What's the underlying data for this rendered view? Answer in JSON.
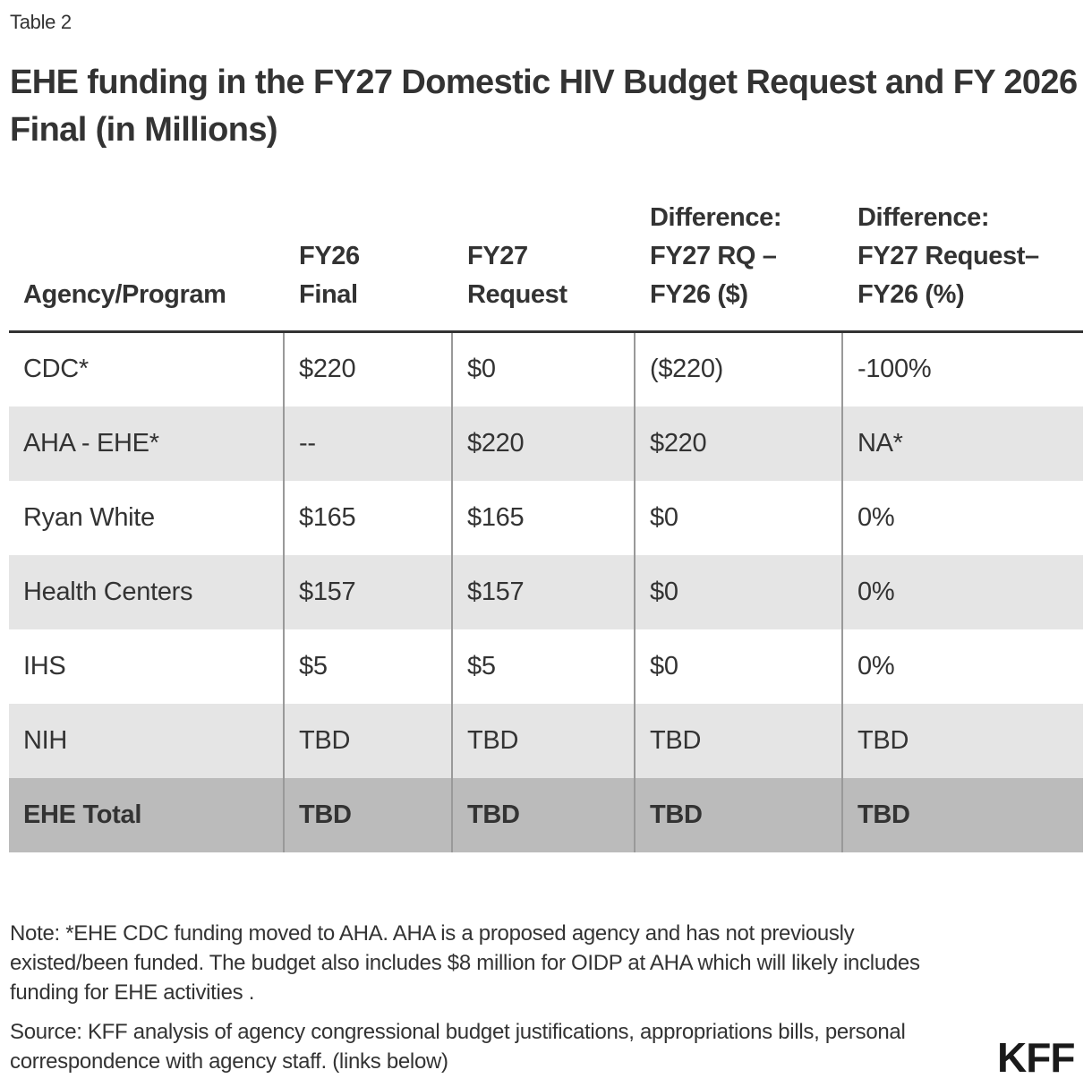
{
  "eyebrow": "Table 2",
  "title": "EHE funding in the FY27 Domestic HIV Budget Request and FY 2026 Final (in Millions)",
  "table": {
    "headers": [
      "Agency/Program",
      "FY26 Final",
      "FY27 Request",
      "Difference: FY27 RQ – FY26 ($)",
      "Difference: FY27 Request– FY26 (%)"
    ],
    "header_lines": [
      [
        "Agency/Program"
      ],
      [
        "FY26",
        "Final"
      ],
      [
        "FY27",
        "Request"
      ],
      [
        "Difference:",
        "FY27 RQ –",
        "FY26 ($)"
      ],
      [
        "Difference:",
        "FY27 Request–",
        "FY26 (%)"
      ]
    ],
    "rows": [
      {
        "cells": [
          "CDC*",
          "$220",
          "$0",
          "($220)",
          "-100%"
        ],
        "shaded": false,
        "total": false
      },
      {
        "cells": [
          "AHA - EHE*",
          "--",
          "$220",
          "$220",
          "NA*"
        ],
        "shaded": true,
        "total": false
      },
      {
        "cells": [
          "Ryan White",
          "$165",
          "$165",
          "$0",
          "0%"
        ],
        "shaded": false,
        "total": false
      },
      {
        "cells": [
          "Health Centers",
          "$157",
          "$157",
          "$0",
          "0%"
        ],
        "shaded": true,
        "total": false
      },
      {
        "cells": [
          "IHS",
          "$5",
          "$5",
          "$0",
          "0%"
        ],
        "shaded": false,
        "total": false
      },
      {
        "cells": [
          "NIH",
          "TBD",
          "TBD",
          "TBD",
          "TBD"
        ],
        "shaded": true,
        "total": false
      },
      {
        "cells": [
          "EHE Total",
          "TBD",
          "TBD",
          "TBD",
          "TBD"
        ],
        "shaded": false,
        "total": true
      }
    ]
  },
  "footer": {
    "note": "Note: *EHE CDC funding moved to AHA. AHA is a proposed agency and has not previously existed/been funded. The budget also includes $8 million for OIDP at AHA which will likely includes funding for EHE activities .",
    "source": "Source: KFF analysis of agency congressional budget justifications, appropriations bills, personal correspondence with agency staff. (links below)"
  },
  "logo": "KFF",
  "colors": {
    "text": "#333333",
    "row_shade": "#e5e5e5",
    "total_row": "#bbbbbb",
    "rule": "#333333",
    "column_divider": "#999999",
    "background": "#ffffff"
  }
}
